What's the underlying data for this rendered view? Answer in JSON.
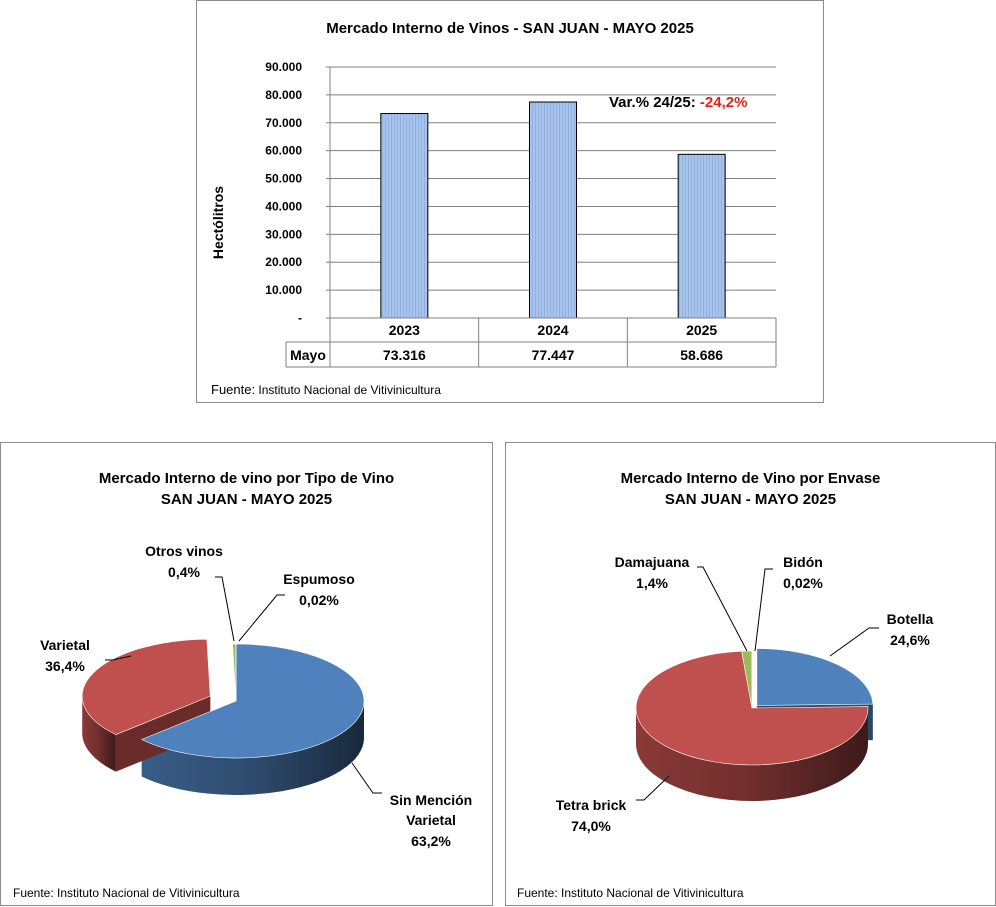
{
  "bar_chart": {
    "title": "Mercado Interno de Vinos - SAN JUAN  - MAYO 2025",
    "source_prefix": "Fuente:",
    "source_text": " Instituto Nacional de Vitivinicultura",
    "annotation_label": "Var.% 24/25: ",
    "annotation_value": "-24,2%",
    "colors": {
      "bar": "#a9c4eb",
      "bar_stripe": "#8fb0e0",
      "annotation": "#e8201a"
    }
  },
  "pie_tipo": {
    "title_line1": "Mercado Interno de vino por Tipo de Vino",
    "title_line2": "SAN JUAN -  MAYO 2025",
    "source": "Fuente: Instituto Nacional de Vitivinicultura",
    "labels": {
      "sin_mencion_1": "Sin Mención",
      "sin_mencion_2": "Varietal",
      "sin_mencion_pct": "63,2%",
      "varietal": "Varietal",
      "varietal_pct": "36,4%",
      "otros": "Otros vinos",
      "otros_pct": "0,4%",
      "espumoso": "Espumoso",
      "espumoso_pct": "0,02%"
    }
  },
  "pie_envase": {
    "title_line1": "Mercado Interno de Vino por Envase",
    "title_line2": "SAN JUAN - MAYO 2025",
    "source": "Fuente: Instituto Nacional de Vitivinicultura",
    "labels": {
      "botella": "Botella",
      "botella_pct": "24,6%",
      "tetra": "Tetra brick",
      "tetra_pct": "74,0%",
      "damajuana": "Damajuana",
      "damajuana_pct": "1,4%",
      "bidon": "Bidón",
      "bidon_pct": "0,02%"
    }
  },
  "chart_data": [
    {
      "type": "bar",
      "title": "Mercado Interno de Vinos - SAN JUAN  - MAYO 2025",
      "ylabel": "Hectólitros",
      "xlabel": "",
      "categories": [
        "2023",
        "2024",
        "2025"
      ],
      "series": [
        {
          "name": "Mayo",
          "values": [
            73316,
            77447,
            58686
          ]
        }
      ],
      "value_labels": [
        "73.316",
        "77.447",
        "58.686"
      ],
      "ylim": [
        0,
        90000
      ],
      "yticks": [
        0,
        10000,
        20000,
        30000,
        40000,
        50000,
        60000,
        70000,
        80000,
        90000
      ],
      "ytick_labels": [
        "-",
        "10.000",
        "20.000",
        "30.000",
        "40.000",
        "50.000",
        "60.000",
        "70.000",
        "80.000",
        "90.000"
      ],
      "grid": true,
      "legend": "none",
      "data_table": true
    },
    {
      "type": "pie",
      "title": "Mercado Interno de vino por Tipo de Vino SAN JUAN -  MAYO 2025",
      "slices": [
        {
          "label": "Sin Mención Varietal",
          "value": 63.2,
          "color": "#4f81bd"
        },
        {
          "label": "Varietal",
          "value": 36.4,
          "color": "#c0504d",
          "exploded": true
        },
        {
          "label": "Otros vinos",
          "value": 0.4,
          "color": "#9bbb59"
        },
        {
          "label": "Espumoso",
          "value": 0.02,
          "color": "#8064a2"
        }
      ],
      "legend": "none"
    },
    {
      "type": "pie",
      "title": "Mercado Interno de Vino por Envase SAN JUAN - MAYO 2025",
      "slices": [
        {
          "label": "Botella",
          "value": 24.6,
          "color": "#4f81bd",
          "exploded": true
        },
        {
          "label": "Tetra brick",
          "value": 74.0,
          "color": "#c0504d"
        },
        {
          "label": "Damajuana",
          "value": 1.4,
          "color": "#9bbb59"
        },
        {
          "label": "Bidón",
          "value": 0.02,
          "color": "#8064a2"
        }
      ],
      "legend": "none"
    }
  ]
}
